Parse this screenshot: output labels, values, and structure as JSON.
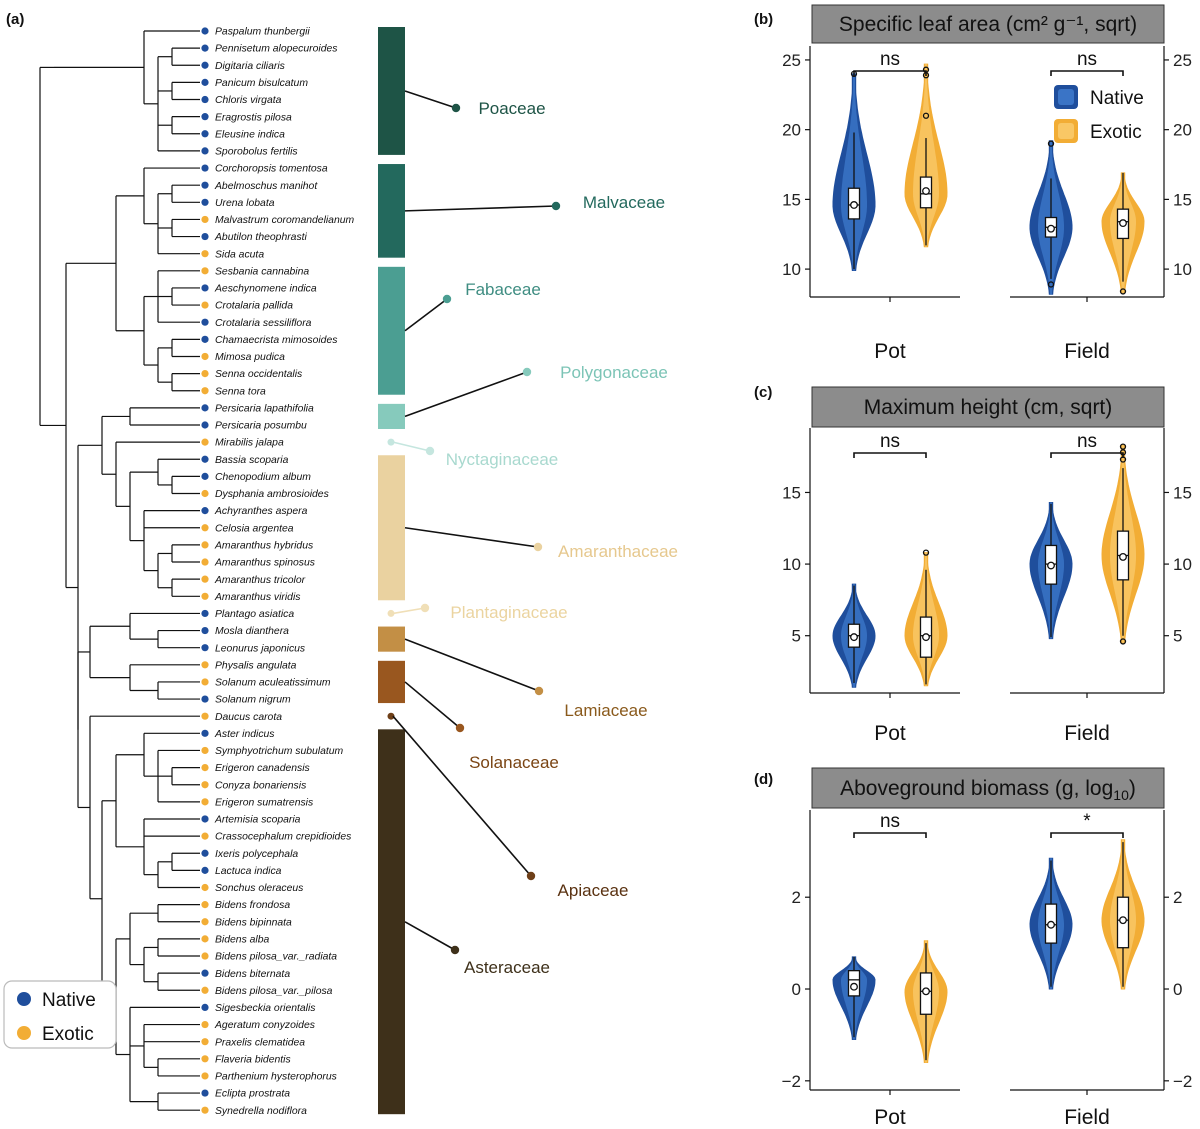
{
  "colors": {
    "native": "#1f4e9c",
    "native_light": "#3a74c6",
    "exotic": "#f2ad35",
    "exotic_light": "#f9c765",
    "strip_bg": "#8c8c8c"
  },
  "panel_a": {
    "label": "(a)",
    "legend": {
      "native": "Native",
      "exotic": "Exotic"
    },
    "species": [
      {
        "name": "Paspalum thunbergii",
        "status": "native"
      },
      {
        "name": "Pennisetum alopecuroides",
        "status": "native"
      },
      {
        "name": "Digitaria ciliaris",
        "status": "native"
      },
      {
        "name": "Panicum bisulcatum",
        "status": "native"
      },
      {
        "name": "Chloris virgata",
        "status": "native"
      },
      {
        "name": "Eragrostis pilosa",
        "status": "native"
      },
      {
        "name": "Eleusine indica",
        "status": "native"
      },
      {
        "name": "Sporobolus fertilis",
        "status": "native"
      },
      {
        "name": "Corchoropsis tomentosa",
        "status": "native"
      },
      {
        "name": "Abelmoschus manihot",
        "status": "native"
      },
      {
        "name": "Urena lobata",
        "status": "native"
      },
      {
        "name": "Malvastrum coromandelianum",
        "status": "exotic"
      },
      {
        "name": "Abutilon theophrasti",
        "status": "native"
      },
      {
        "name": "Sida acuta",
        "status": "exotic"
      },
      {
        "name": "Sesbania cannabina",
        "status": "exotic"
      },
      {
        "name": "Aeschynomene indica",
        "status": "native"
      },
      {
        "name": "Crotalaria pallida",
        "status": "exotic"
      },
      {
        "name": "Crotalaria sessiliflora",
        "status": "native"
      },
      {
        "name": "Chamaecrista mimosoides",
        "status": "native"
      },
      {
        "name": "Mimosa pudica",
        "status": "exotic"
      },
      {
        "name": "Senna occidentalis",
        "status": "exotic"
      },
      {
        "name": "Senna tora",
        "status": "exotic"
      },
      {
        "name": "Persicaria lapathifolia",
        "status": "native"
      },
      {
        "name": "Persicaria posumbu",
        "status": "native"
      },
      {
        "name": "Mirabilis jalapa",
        "status": "exotic"
      },
      {
        "name": "Bassia scoparia",
        "status": "native"
      },
      {
        "name": "Chenopodium album",
        "status": "native"
      },
      {
        "name": "Dysphania ambrosioides",
        "status": "exotic"
      },
      {
        "name": "Achyranthes aspera",
        "status": "native"
      },
      {
        "name": "Celosia argentea",
        "status": "exotic"
      },
      {
        "name": "Amaranthus hybridus",
        "status": "exotic"
      },
      {
        "name": "Amaranthus spinosus",
        "status": "exotic"
      },
      {
        "name": "Amaranthus tricolor",
        "status": "exotic"
      },
      {
        "name": "Amaranthus viridis",
        "status": "exotic"
      },
      {
        "name": "Plantago asiatica",
        "status": "native"
      },
      {
        "name": "Mosla dianthera",
        "status": "native"
      },
      {
        "name": "Leonurus japonicus",
        "status": "native"
      },
      {
        "name": "Physalis angulata",
        "status": "exotic"
      },
      {
        "name": "Solanum aculeatissimum",
        "status": "exotic"
      },
      {
        "name": "Solanum nigrum",
        "status": "native"
      },
      {
        "name": "Daucus carota",
        "status": "exotic"
      },
      {
        "name": "Aster indicus",
        "status": "native"
      },
      {
        "name": "Symphyotrichum subulatum",
        "status": "exotic"
      },
      {
        "name": "Erigeron canadensis",
        "status": "exotic"
      },
      {
        "name": "Conyza bonariensis",
        "status": "exotic"
      },
      {
        "name": "Erigeron sumatrensis",
        "status": "exotic"
      },
      {
        "name": "Artemisia scoparia",
        "status": "native"
      },
      {
        "name": "Crassocephalum crepidioides",
        "status": "exotic"
      },
      {
        "name": "Ixeris polycephala",
        "status": "native"
      },
      {
        "name": "Lactuca indica",
        "status": "native"
      },
      {
        "name": "Sonchus oleraceus",
        "status": "exotic"
      },
      {
        "name": "Bidens frondosa",
        "status": "exotic"
      },
      {
        "name": "Bidens bipinnata",
        "status": "exotic"
      },
      {
        "name": "Bidens alba",
        "status": "exotic"
      },
      {
        "name": "Bidens pilosa_var._radiata",
        "status": "exotic"
      },
      {
        "name": "Bidens biternata",
        "status": "native"
      },
      {
        "name": "Bidens pilosa_var._pilosa",
        "status": "exotic"
      },
      {
        "name": "Sigesbeckia orientalis",
        "status": "native"
      },
      {
        "name": "Ageratum conyzoides",
        "status": "exotic"
      },
      {
        "name": "Praxelis clematidea",
        "status": "exotic"
      },
      {
        "name": "Flaveria bidentis",
        "status": "exotic"
      },
      {
        "name": "Parthenium hysterophorus",
        "status": "exotic"
      },
      {
        "name": "Eclipta prostrata",
        "status": "native"
      },
      {
        "name": "Synedrella nodiflora",
        "status": "exotic"
      }
    ],
    "families": [
      {
        "name": "Poaceae",
        "from": 0,
        "to": 7,
        "color": "#1e5446",
        "text_color": "#1e5446"
      },
      {
        "name": "Malvaceae",
        "from": 8,
        "to": 13,
        "color": "#23695d",
        "text_color": "#23695d"
      },
      {
        "name": "Fabaceae",
        "from": 14,
        "to": 21,
        "color": "#4b9e92",
        "text_color": "#3f8d82"
      },
      {
        "name": "Polygonaceae",
        "from": 22,
        "to": 23,
        "color": "#86cabc",
        "text_color": "#7cc4b6"
      },
      {
        "name": "Nyctaginaceae",
        "from": 24,
        "to": 24,
        "color": "#c5e6df",
        "text_color": "#a9d9cf"
      },
      {
        "name": "Amaranthaceae",
        "from": 25,
        "to": 33,
        "color": "#ead2a0",
        "text_color": "#e6c88e"
      },
      {
        "name": "Plantaginaceae",
        "from": 34,
        "to": 34,
        "color": "#f0dfb7",
        "text_color": "#ebd4a0"
      },
      {
        "name": "Lamiaceae",
        "from": 35,
        "to": 36,
        "color": "#c38f45",
        "text_color": "#8a5a1c"
      },
      {
        "name": "Solanaceae",
        "from": 37,
        "to": 39,
        "color": "#99571f",
        "text_color": "#7a4413"
      },
      {
        "name": "Apiaceae",
        "from": 40,
        "to": 40,
        "color": "#6e3f18",
        "text_color": "#5a3211"
      },
      {
        "name": "Asteraceae",
        "from": 41,
        "to": 63,
        "color": "#3e301a",
        "text_color": "#3e301a"
      }
    ]
  },
  "chart_data": [
    {
      "type": "violin",
      "panel": "(b)",
      "title": "Specific leaf area",
      "title_units": "cm² g⁻¹, sqrt",
      "categories": [
        "Pot",
        "Field"
      ],
      "ylim": [
        8,
        26
      ],
      "yticks": [
        10,
        15,
        20,
        25
      ],
      "legend": {
        "native": "Native",
        "exotic": "Exotic"
      },
      "series": [
        {
          "name": "Native",
          "groups": [
            {
              "category": "Pot",
              "min": 9.9,
              "q1": 13.6,
              "median": 14.6,
              "mean": 14.6,
              "q3": 15.8,
              "whisker_low": 10.0,
              "whisker_high": 19.8,
              "max": 24.0,
              "outliers": [
                24.0
              ]
            },
            {
              "category": "Field",
              "min": 8.2,
              "q1": 12.3,
              "median": 13.0,
              "mean": 12.9,
              "q3": 13.7,
              "whisker_low": 9.3,
              "whisker_high": 16.5,
              "max": 19.2,
              "outliers": [
                19.0,
                8.9
              ]
            }
          ]
        },
        {
          "name": "Exotic",
          "groups": [
            {
              "category": "Pot",
              "min": 11.6,
              "q1": 14.4,
              "median": 15.4,
              "mean": 15.6,
              "q3": 16.6,
              "whisker_low": 11.7,
              "whisker_high": 19.4,
              "max": 24.7,
              "outliers": [
                24.3,
                23.9,
                21.0
              ]
            },
            {
              "category": "Field",
              "min": 8.3,
              "q1": 12.2,
              "median": 13.4,
              "mean": 13.3,
              "q3": 14.3,
              "whisker_low": 9.1,
              "whisker_high": 16.9,
              "max": 16.9,
              "outliers": [
                8.4
              ]
            }
          ]
        }
      ],
      "comparisons": [
        {
          "category": "Pot",
          "label": "ns"
        },
        {
          "category": "Field",
          "label": "ns"
        }
      ]
    },
    {
      "type": "violin",
      "panel": "(c)",
      "title": "Maximum height",
      "title_units": "cm, sqrt",
      "categories": [
        "Pot",
        "Field"
      ],
      "ylim": [
        1,
        19.5
      ],
      "yticks": [
        5,
        10,
        15
      ],
      "series": [
        {
          "name": "Native",
          "groups": [
            {
              "category": "Pot",
              "min": 1.4,
              "q1": 4.2,
              "median": 5.0,
              "mean": 4.9,
              "q3": 5.8,
              "whisker_low": 1.7,
              "whisker_high": 8.5,
              "max": 8.6,
              "outliers": []
            },
            {
              "category": "Field",
              "min": 4.8,
              "q1": 8.6,
              "median": 10.0,
              "mean": 9.9,
              "q3": 11.3,
              "whisker_low": 4.9,
              "whisker_high": 14.2,
              "max": 14.3,
              "outliers": []
            }
          ]
        },
        {
          "name": "Exotic",
          "groups": [
            {
              "category": "Pot",
              "min": 1.5,
              "q1": 3.5,
              "median": 5.0,
              "mean": 4.9,
              "q3": 6.3,
              "whisker_low": 1.6,
              "whisker_high": 9.6,
              "max": 10.8,
              "outliers": [
                10.8
              ]
            },
            {
              "category": "Field",
              "min": 4.5,
              "q1": 8.9,
              "median": 10.6,
              "mean": 10.5,
              "q3": 12.3,
              "whisker_low": 5.0,
              "whisker_high": 16.7,
              "max": 18.3,
              "outliers": [
                18.2,
                17.8,
                17.3,
                4.6
              ]
            }
          ]
        }
      ],
      "comparisons": [
        {
          "category": "Pot",
          "label": "ns"
        },
        {
          "category": "Field",
          "label": "ns"
        }
      ]
    },
    {
      "type": "violin",
      "panel": "(d)",
      "title": "Aboveground biomass",
      "title_units": "g, log",
      "title_units_sub": "10",
      "categories": [
        "Pot",
        "Field"
      ],
      "ylim": [
        -2.2,
        3.9
      ],
      "yticks": [
        -2,
        0,
        2
      ],
      "ytick_labels": [
        "−2",
        "0",
        "2"
      ],
      "series": [
        {
          "name": "Native",
          "groups": [
            {
              "category": "Pot",
              "min": -1.1,
              "q1": -0.15,
              "median": 0.2,
              "mean": 0.05,
              "q3": 0.4,
              "whisker_low": -1.05,
              "whisker_high": 0.7,
              "max": 0.7,
              "outliers": []
            },
            {
              "category": "Field",
              "min": 0.0,
              "q1": 1.0,
              "median": 1.4,
              "mean": 1.4,
              "q3": 1.85,
              "whisker_low": 0.05,
              "whisker_high": 2.8,
              "max": 2.85,
              "outliers": []
            }
          ]
        },
        {
          "name": "Exotic",
          "groups": [
            {
              "category": "Pot",
              "min": -1.6,
              "q1": -0.55,
              "median": -0.05,
              "mean": -0.05,
              "q3": 0.35,
              "whisker_low": -1.55,
              "whisker_high": 1.0,
              "max": 1.05,
              "outliers": []
            },
            {
              "category": "Field",
              "min": 0.0,
              "q1": 0.9,
              "median": 1.5,
              "mean": 1.5,
              "q3": 2.0,
              "whisker_low": 0.05,
              "whisker_high": 3.2,
              "max": 3.25,
              "outliers": []
            }
          ]
        }
      ],
      "comparisons": [
        {
          "category": "Pot",
          "label": "ns"
        },
        {
          "category": "Field",
          "label": "*"
        }
      ]
    }
  ]
}
